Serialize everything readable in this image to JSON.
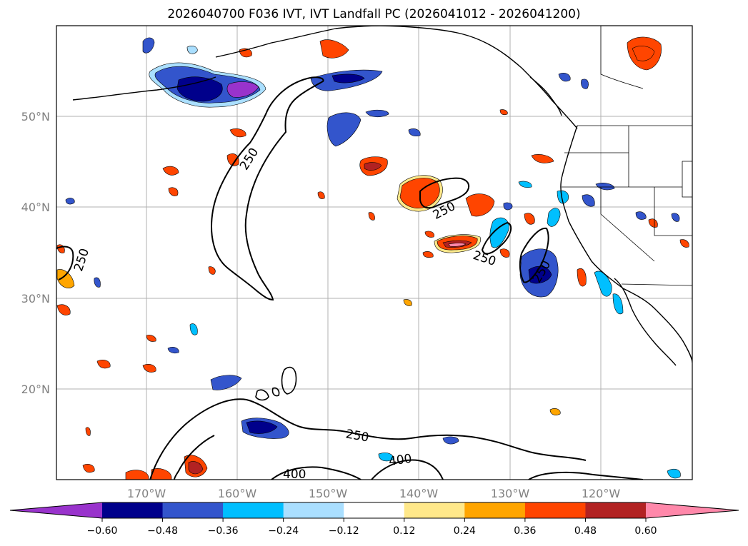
{
  "title": "2026040700 F036 IVT, IVT Landfall PC (2026041012 - 2026041200)",
  "lat_labels": [
    "50°N",
    "40°N",
    "30°N",
    "20°N"
  ],
  "lon_labels": [
    "170°W",
    "160°W",
    "150°W",
    "140°W",
    "130°W",
    "120°W"
  ],
  "contour_labels": [
    "250",
    "250",
    "250",
    "250",
    "250",
    "250",
    "400",
    "400"
  ],
  "colorbar": {
    "ticks": [
      "−0.60",
      "−0.48",
      "−0.36",
      "−0.24",
      "−0.12",
      "0.12",
      "0.24",
      "0.36",
      "0.48",
      "0.60"
    ],
    "colors": [
      "#9933cc",
      "#00008b",
      "#3355cc",
      "#00bfff",
      "#aadfff",
      "#ffffff",
      "#ffe88a",
      "#ffa500",
      "#ff4500",
      "#b22222",
      "#ff88aa"
    ],
    "extend": "both"
  },
  "colors": {
    "contour": "#000000",
    "grid": "#b0b0b0",
    "coast": "#000000"
  }
}
